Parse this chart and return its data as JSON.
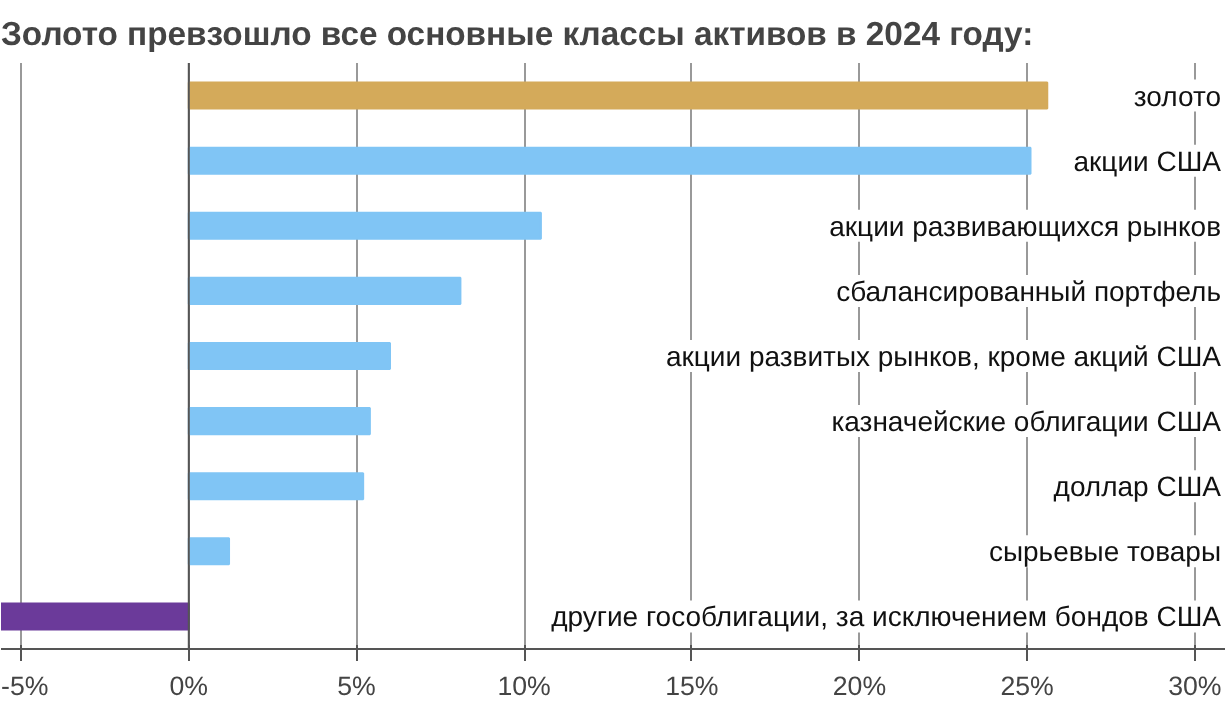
{
  "chart_data": {
    "type": "bar",
    "orientation": "horizontal",
    "title": "Золото превзошло все основные классы активов в 2024 году:",
    "categories": [
      "золото",
      "акции США",
      "акции развивающихся рынков",
      "сбалансированный портфель",
      "акции развитых рынков, кроме акций США",
      "казначейские облигации США",
      "доллар США",
      "сырьевые товары",
      "другие гособлигации, за исключением бондов США"
    ],
    "values": [
      25.6,
      25.1,
      10.5,
      8.1,
      6.0,
      5.4,
      5.2,
      1.2,
      -5.6
    ],
    "colors": [
      "#d4aa5a",
      "#80c5f5",
      "#80c5f5",
      "#80c5f5",
      "#80c5f5",
      "#80c5f5",
      "#80c5f5",
      "#80c5f5",
      "#6b3a9a"
    ],
    "xlim": [
      -5.6,
      30.9
    ],
    "xticks": [
      {
        "value": -5,
        "label": "-5%"
      },
      {
        "value": 0,
        "label": "0%"
      },
      {
        "value": 5,
        "label": "5%"
      },
      {
        "value": 10,
        "label": "10%"
      },
      {
        "value": 15,
        "label": "15%"
      },
      {
        "value": 20,
        "label": "20%"
      },
      {
        "value": 25,
        "label": "25%"
      },
      {
        "value": 30,
        "label": "30%"
      }
    ],
    "grid": "x"
  }
}
